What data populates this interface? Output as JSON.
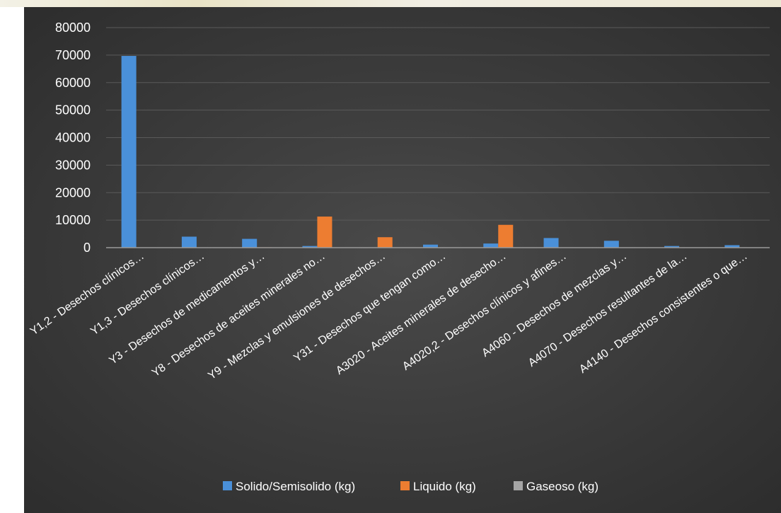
{
  "chart_data": {
    "type": "bar",
    "title": "",
    "xlabel": "",
    "ylabel": "",
    "ylim": [
      0,
      80000
    ],
    "yticks": [
      0,
      10000,
      20000,
      30000,
      40000,
      50000,
      60000,
      70000,
      80000
    ],
    "grid": true,
    "legend_position": "bottom",
    "categories": [
      "Y1,2 - Desechos clínicos…",
      "Y1,3 - Desechos clínicos…",
      "Y3 - Desechos de medicamentos y…",
      "Y8 - Desechos de aceites minerales no…",
      "Y9 - Mezclas y emulsiones de desechos…",
      "Y31 - Desechos que tengan como…",
      "A3020 - Aceites minerales de desecho…",
      "A4020,2 - Desechos clínicos y afines…",
      "A4060 - Desechos de mezclas y…",
      "A4070 - Desechos resultantes de la…",
      "A4140 - Desechos consistentes o que…"
    ],
    "series": [
      {
        "name": "Solido/Semisolido (kg)",
        "color": "#4a90d9",
        "values": [
          69700,
          4000,
          3200,
          600,
          0,
          1100,
          1500,
          3500,
          2500,
          600,
          900
        ]
      },
      {
        "name": "Liquido (kg)",
        "color": "#ed7d31",
        "values": [
          0,
          0,
          150,
          11300,
          3800,
          0,
          8300,
          0,
          0,
          0,
          0
        ]
      },
      {
        "name": "Gaseoso (kg)",
        "color": "#a5a5a5",
        "values": [
          0,
          0,
          0,
          0,
          0,
          0,
          0,
          0,
          0,
          0,
          0
        ]
      }
    ]
  }
}
